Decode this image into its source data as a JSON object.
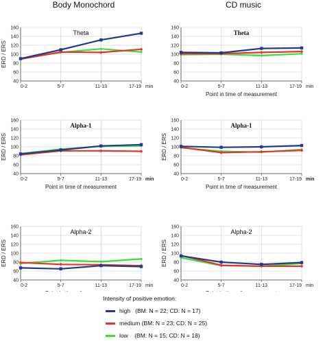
{
  "column_titles": [
    "Body Monochord",
    "CD music"
  ],
  "colors": {
    "high": "#1f3a8f",
    "medium": "#e8332a",
    "low": "#3adf3a",
    "grid": "#d7d7d7",
    "axis": "#666666"
  },
  "legend": {
    "title": "Intensity of positive emotion:",
    "items": [
      {
        "key": "high",
        "name": "high",
        "detail": "(BM: N = 22; CD: N = 17)",
        "color": "#1f3a8f"
      },
      {
        "key": "medium",
        "name": "medium",
        "detail": "(BM: N = 23; CD: N = 25)",
        "color": "#e8332a"
      },
      {
        "key": "low",
        "name": "low",
        "detail": "(BM: N = 15; CD: N = 18)",
        "color": "#3adf3a"
      }
    ]
  },
  "chart_data": [
    {
      "type": "line",
      "column": 0,
      "row": 0,
      "title": "Theta",
      "title_bold": false,
      "ylabel": "ERD / ERS",
      "xlabel": "",
      "categories": [
        "0-2",
        "5-7",
        "11-13",
        "17-19"
      ],
      "x_unit": "min",
      "ylim": [
        40,
        160
      ],
      "yticks": [
        40,
        60,
        80,
        100,
        120,
        140,
        160
      ],
      "grid": true,
      "series": [
        {
          "name": "high",
          "values": [
            90,
            110,
            132,
            147
          ]
        },
        {
          "name": "medium",
          "values": [
            89,
            105,
            104,
            111
          ]
        },
        {
          "name": "low",
          "values": [
            90,
            104,
            112,
            105
          ]
        }
      ]
    },
    {
      "type": "line",
      "column": 1,
      "row": 0,
      "title": "Theta",
      "title_bold": true,
      "ylabel": "",
      "xlabel": "Point in time of measurement",
      "categories": [
        "0-2",
        "5-7",
        "11-13",
        "17-19"
      ],
      "x_unit": "min",
      "ylim": [
        40,
        160
      ],
      "yticks": [
        40,
        60,
        80,
        100,
        120,
        140,
        160
      ],
      "grid": true,
      "series": [
        {
          "name": "high",
          "values": [
            104,
            103,
            113,
            114
          ]
        },
        {
          "name": "medium",
          "values": [
            101,
            101,
            104,
            106
          ]
        },
        {
          "name": "low",
          "values": [
            99,
            100,
            97,
            101
          ]
        }
      ]
    },
    {
      "type": "line",
      "column": 0,
      "row": 1,
      "title": "Alpha-1",
      "title_bold": true,
      "ylabel": "ERD / ERS",
      "xlabel": "Point in time of measurement",
      "categories": [
        "0-2",
        "5-7",
        "11-13",
        "17-19"
      ],
      "x_unit": "min",
      "ylim": [
        40,
        160
      ],
      "yticks": [
        40,
        60,
        80,
        100,
        120,
        140,
        160
      ],
      "grid": true,
      "series": [
        {
          "name": "high",
          "values": [
            84,
            93,
            102,
            105
          ]
        },
        {
          "name": "medium",
          "values": [
            82,
            91,
            91,
            90
          ]
        },
        {
          "name": "low",
          "values": [
            85,
            95,
            101,
            102
          ]
        }
      ]
    },
    {
      "type": "line",
      "column": 1,
      "row": 1,
      "title": "Alpha-1",
      "title_bold": true,
      "ylabel": "ERD / ERS",
      "xlabel": "Point in time of measurement",
      "categories": [
        "0-2",
        "5-7",
        "11-13",
        "17-19"
      ],
      "x_unit": "min",
      "ylim": [
        40,
        160
      ],
      "yticks": [
        40,
        60,
        80,
        100,
        120,
        140,
        160
      ],
      "grid": true,
      "series": [
        {
          "name": "high",
          "values": [
            101,
            99,
            100,
            103
          ]
        },
        {
          "name": "medium",
          "values": [
            99,
            87,
            89,
            92
          ]
        },
        {
          "name": "low",
          "values": [
            98,
            90,
            88,
            94
          ]
        }
      ]
    },
    {
      "type": "line",
      "column": 0,
      "row": 2,
      "title": "Alpha-2",
      "title_bold": false,
      "ylabel": "ERD / ERS",
      "xlabel": "Point in time of measurement",
      "categories": [
        "0-2",
        "5-7",
        "11-13",
        "17-19"
      ],
      "x_unit": "min",
      "ylim": [
        40,
        160
      ],
      "yticks": [
        40,
        60,
        80,
        100,
        120,
        140,
        160
      ],
      "grid": true,
      "series": [
        {
          "name": "high",
          "values": [
            67,
            65,
            72,
            70
          ]
        },
        {
          "name": "medium",
          "values": [
            79,
            75,
            74,
            72
          ]
        },
        {
          "name": "low",
          "values": [
            77,
            84,
            81,
            87
          ]
        }
      ]
    },
    {
      "type": "line",
      "column": 1,
      "row": 2,
      "title": "Alpha-2",
      "title_bold": false,
      "ylabel": "ERD / ERS",
      "xlabel": "Point in time of measurement",
      "categories": [
        "0-2",
        "5-7",
        "11-13",
        "17-19"
      ],
      "x_unit": "min",
      "ylim": [
        40,
        160
      ],
      "yticks": [
        40,
        60,
        80,
        100,
        120,
        140,
        160
      ],
      "grid": true,
      "series": [
        {
          "name": "high",
          "values": [
            94,
            80,
            75,
            79
          ]
        },
        {
          "name": "medium",
          "values": [
            95,
            73,
            71,
            71
          ]
        },
        {
          "name": "low",
          "values": [
            90,
            72,
            71,
            77
          ]
        }
      ]
    }
  ]
}
